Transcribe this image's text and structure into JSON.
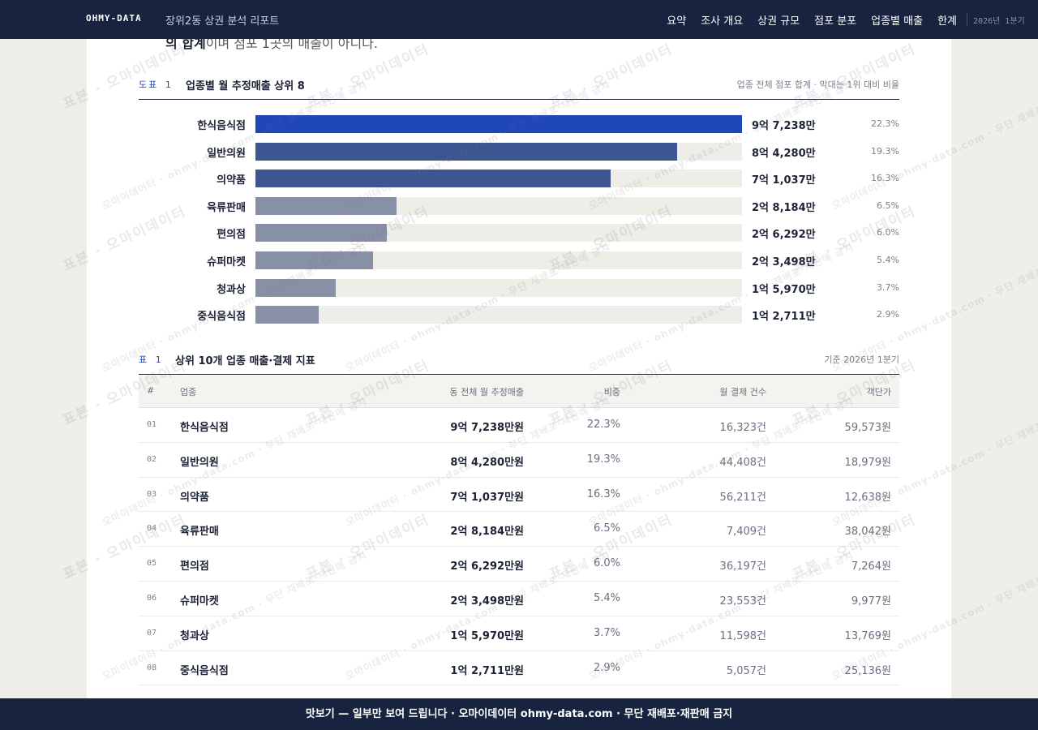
{
  "header": {
    "brand": "OHMY-DATA",
    "report_title": "장위2동 상권 분석 리포트",
    "nav": [
      "요약",
      "조사 개요",
      "상권 규모",
      "점포 분포",
      "업종별 매출",
      "한계"
    ],
    "period": "2026년 1분기"
  },
  "intro": {
    "cut_bold": "의 합계",
    "cut_rest": "이며 점포 1곳의 매출이 아니다."
  },
  "figure1": {
    "tag": "도표 1",
    "title": "업종별 월 추정매출 상위 8",
    "note": "업종 전체 점포 합계 · 막대는 1위 대비 비율"
  },
  "chart_data": {
    "type": "bar",
    "orientation": "horizontal",
    "title": "업종별 월 추정매출 상위 8",
    "categories": [
      "한식음식점",
      "일반의원",
      "의약품",
      "육류판매",
      "편의점",
      "슈퍼마켓",
      "청과상",
      "중식음식점"
    ],
    "values": [
      97238,
      84280,
      71037,
      28184,
      26292,
      23498,
      15970,
      12711
    ],
    "value_unit": "만원",
    "value_labels": [
      "9억 7,238만",
      "8억 4,280만",
      "7억 1,037만",
      "2억 8,184만",
      "2억 6,292만",
      "2억 3,498만",
      "1억 5,970만",
      "1억 2,711만"
    ],
    "share_labels": [
      "22.3%",
      "19.3%",
      "16.3%",
      "6.5%",
      "6.0%",
      "5.4%",
      "3.7%",
      "2.9%"
    ],
    "bar_colors": [
      "#1f47b8",
      "#3d5590",
      "#3d5590",
      "#8890a6",
      "#8890a6",
      "#8890a6",
      "#8890a6",
      "#8890a6"
    ],
    "xlim": [
      0,
      97238
    ]
  },
  "table1": {
    "tag": "표 1",
    "title": "상위 10개 업종 매출·결제 지표",
    "note": "기준 2026년 1분기",
    "columns": [
      "#",
      "업종",
      "동 전체 월 추정매출",
      "비중",
      "월 결제 건수",
      "객단가"
    ],
    "rows": [
      [
        "01",
        "한식음식점",
        "9억 7,238만원",
        "22.3%",
        "16,323건",
        "59,573원"
      ],
      [
        "02",
        "일반의원",
        "8억 4,280만원",
        "19.3%",
        "44,408건",
        "18,979원"
      ],
      [
        "03",
        "의약품",
        "7억 1,037만원",
        "16.3%",
        "56,211건",
        "12,638원"
      ],
      [
        "04",
        "육류판매",
        "2억 8,184만원",
        "6.5%",
        "7,409건",
        "38,042원"
      ],
      [
        "05",
        "편의점",
        "2억 6,292만원",
        "6.0%",
        "36,197건",
        "7,264원"
      ],
      [
        "06",
        "슈퍼마켓",
        "2억 3,498만원",
        "5.4%",
        "23,553건",
        "9,977원"
      ],
      [
        "07",
        "청과상",
        "1억 5,970만원",
        "3.7%",
        "11,598건",
        "13,769원"
      ],
      [
        "08",
        "중식음식점",
        "1억 2,711만원",
        "2.9%",
        "5,057건",
        "25,136원"
      ]
    ]
  },
  "watermark": {
    "primary": "표본 · 오마이데이터",
    "secondary": "오마이데이터 · ohmy-data.com · 무단 재배포·재판매 금지"
  },
  "banner": {
    "text": "맛보기 — 일부만 보여 드립니다 · 오마이데이터 ohmy-data.com · 무단 재배포·재판매 금지"
  }
}
